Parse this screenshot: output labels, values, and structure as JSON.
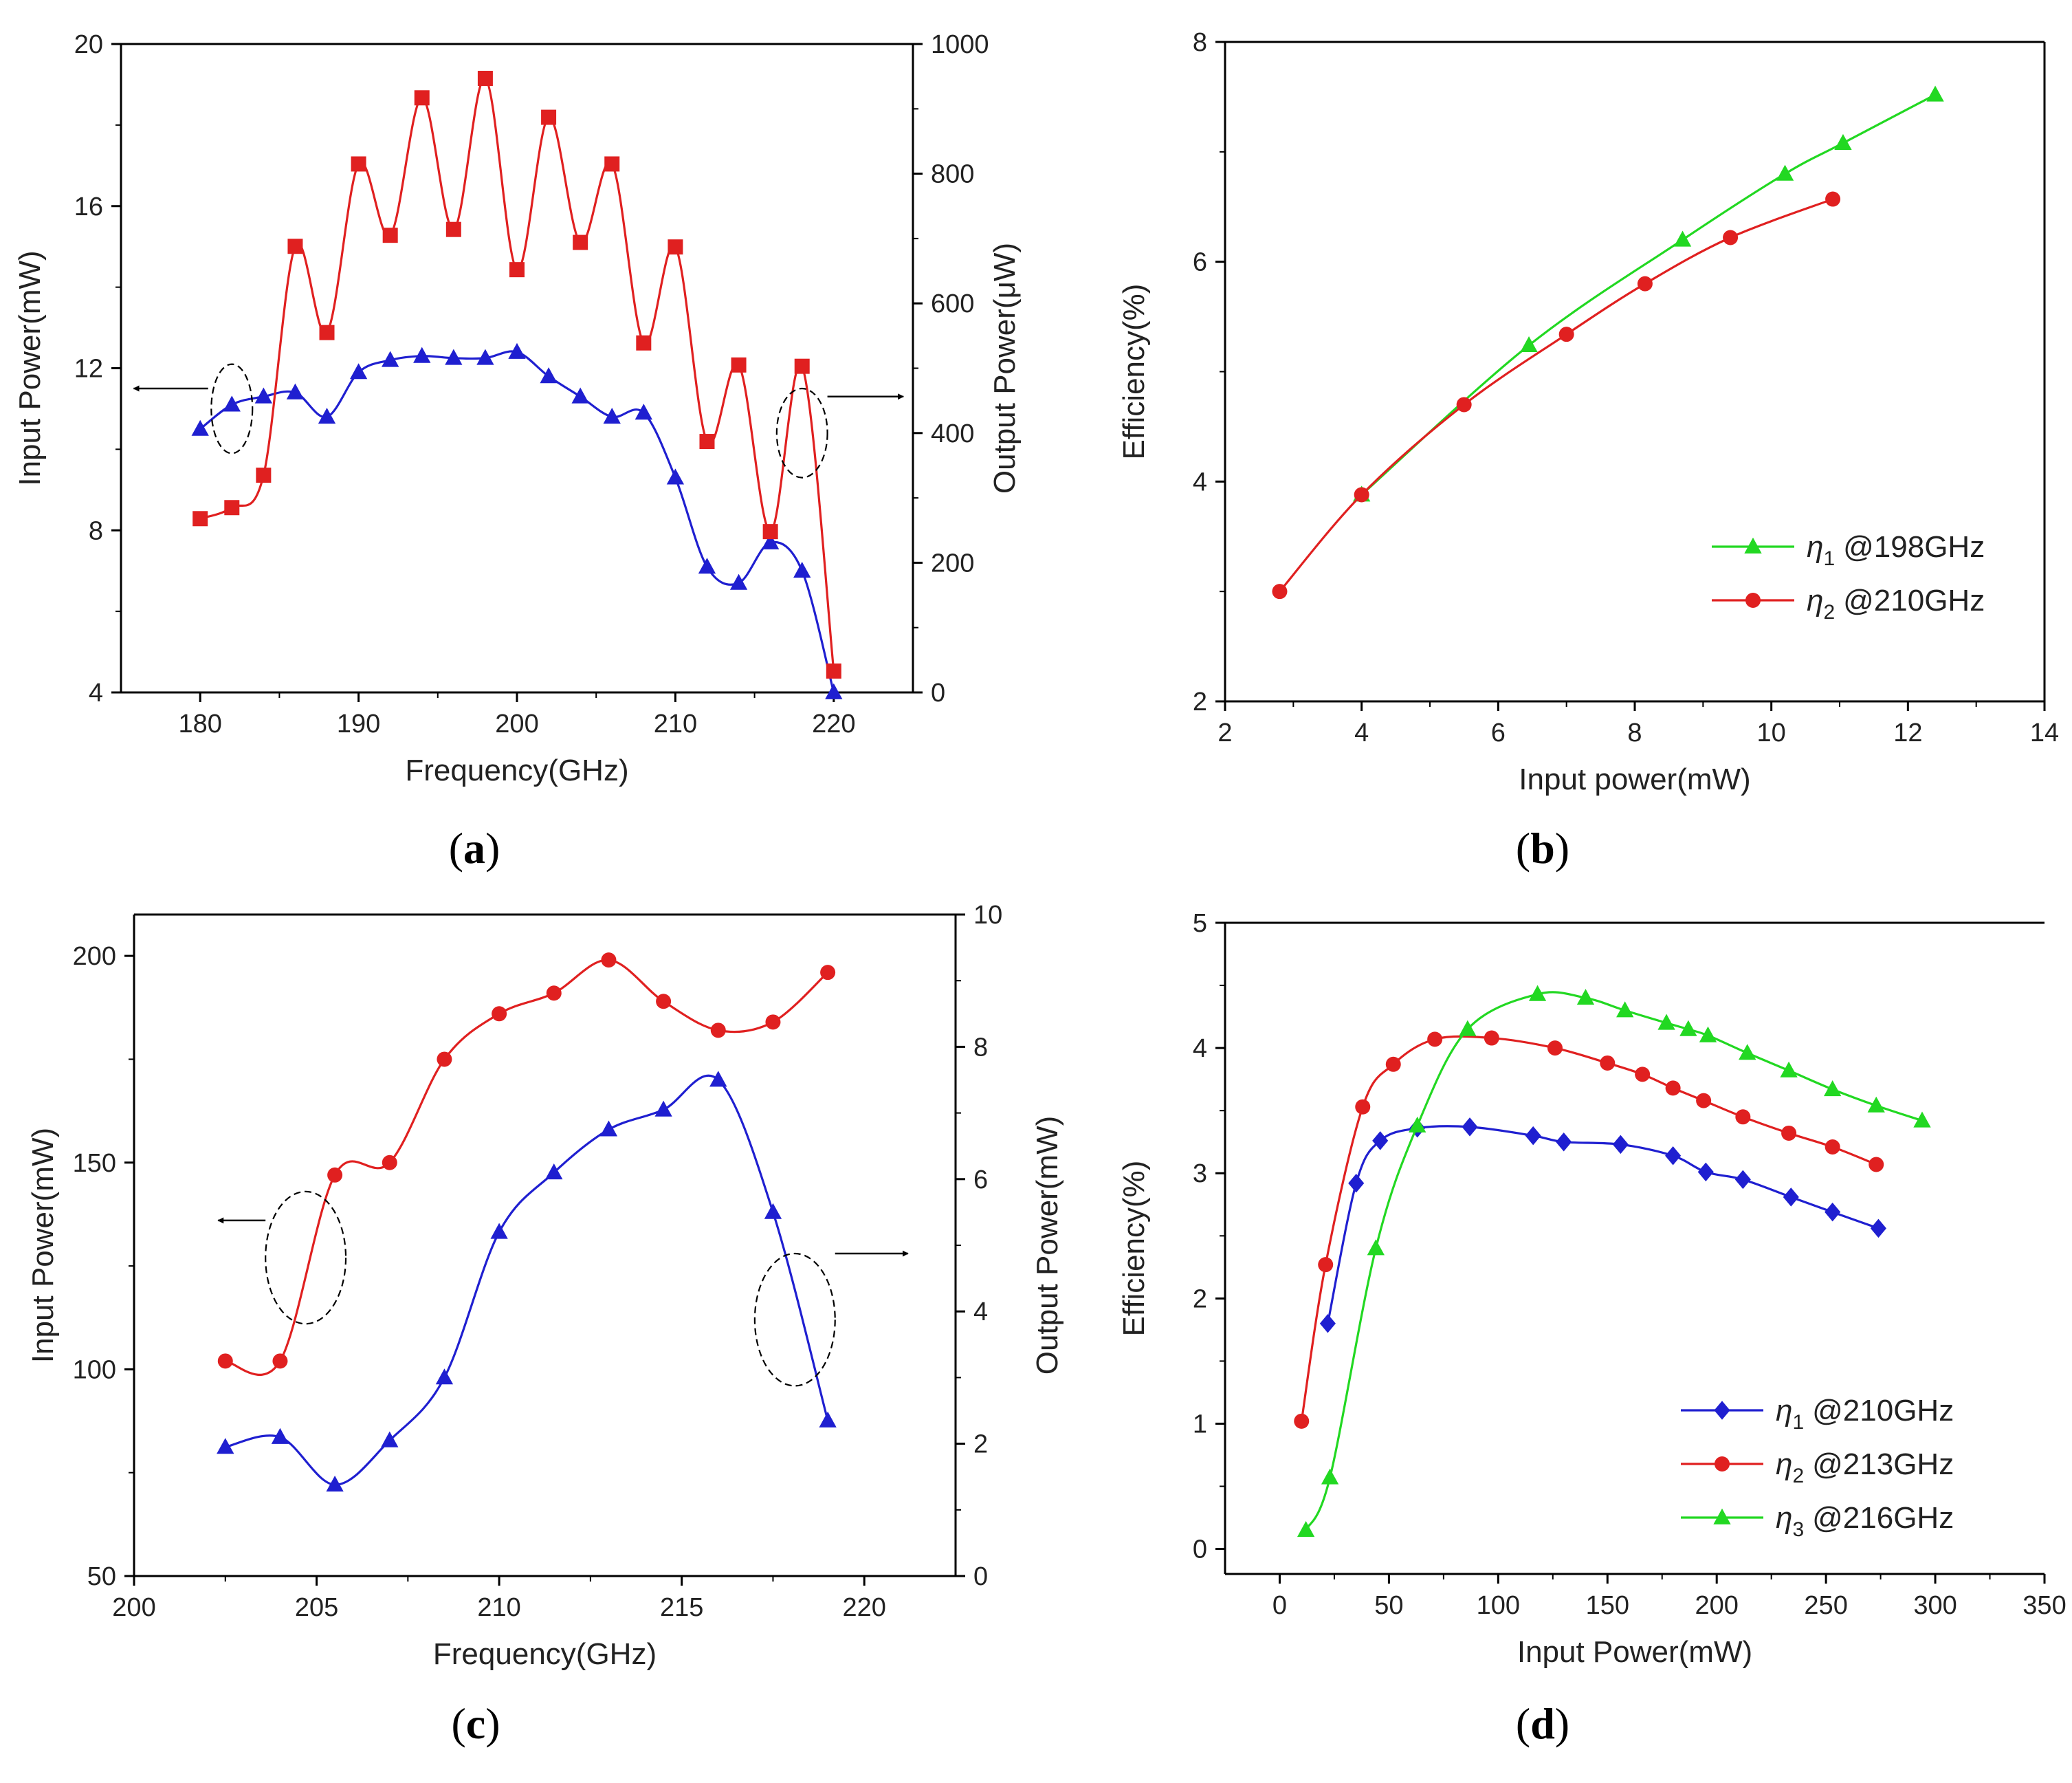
{
  "colors": {
    "red": "#e02020",
    "blue": "#1f1fd0",
    "green": "#22d822",
    "axis": "#000000"
  },
  "chart_data": [
    {
      "id": "a",
      "type": "line",
      "label": "a",
      "xlabel": "Frequency(GHz)",
      "ylabel": "Input Power(mW)",
      "ylabel_right": "Output Power(μW)",
      "xlim": [
        175,
        225
      ],
      "ylim": [
        4,
        20
      ],
      "ylim_right": [
        0,
        1000
      ],
      "xticks": [
        180,
        190,
        200,
        210,
        220
      ],
      "yticks": [
        4,
        8,
        12,
        16,
        20
      ],
      "yticks_right": [
        0,
        200,
        400,
        600,
        800,
        1000
      ],
      "box_right": true,
      "series": [
        {
          "axis": "left",
          "color": "blue",
          "marker": "triangle",
          "x": [
            180,
            182,
            184,
            186,
            188,
            190,
            192,
            194,
            196,
            198,
            200,
            202,
            204,
            206,
            208,
            210,
            212,
            214,
            216,
            218,
            220
          ],
          "y": [
            10.5,
            11.1,
            11.3,
            11.4,
            10.8,
            11.9,
            12.2,
            12.3,
            12.25,
            12.25,
            12.4,
            11.8,
            11.3,
            10.8,
            10.9,
            9.3,
            7.1,
            6.7,
            7.7,
            7.0,
            4.0
          ]
        },
        {
          "axis": "right",
          "color": "red",
          "marker": "square",
          "x": [
            180,
            182,
            184,
            186,
            188,
            190,
            192,
            194,
            196,
            198,
            200,
            202,
            204,
            206,
            208,
            210,
            212,
            214,
            216,
            218,
            220
          ],
          "y": [
            268,
            285,
            335,
            688,
            555,
            815,
            705,
            917,
            714,
            947,
            652,
            887,
            694,
            815,
            539,
            687,
            387,
            505,
            248,
            503,
            33
          ]
        }
      ],
      "annotations": [
        {
          "type": "ellipse",
          "cx": 182,
          "cy": 11.0,
          "rx": 1.3,
          "ry": 1.1
        },
        {
          "type": "arrow",
          "x1": 180.5,
          "y1": 11.5,
          "x2": 175.8,
          "y2": 11.5
        },
        {
          "type": "ellipse",
          "cx": 218,
          "cy": 10.4,
          "rx": 1.6,
          "ry": 1.1
        },
        {
          "type": "arrow",
          "x1": 219.6,
          "y1": 11.3,
          "x2": 224.4,
          "y2": 11.3
        }
      ]
    },
    {
      "id": "b",
      "type": "line",
      "label": "b",
      "xlabel": "Input power(mW)",
      "ylabel": "Efficiency(%)",
      "xlim": [
        2,
        14
      ],
      "ylim": [
        2,
        8
      ],
      "xticks": [
        2,
        4,
        6,
        8,
        10,
        12,
        14
      ],
      "yticks": [
        2,
        4,
        6,
        8
      ],
      "box_right": true,
      "legend": {
        "placement": "bottom-right",
        "sym": [
          "η",
          "η"
        ],
        "sub": [
          "1",
          "2"
        ],
        "freq": [
          "@198GHz",
          "@210GHz"
        ]
      },
      "series": [
        {
          "color": "green",
          "marker": "triangle",
          "x": [
            4.0,
            6.45,
            8.7,
            10.2,
            11.05,
            12.4
          ],
          "y": [
            3.88,
            5.24,
            6.2,
            6.8,
            7.08,
            7.52
          ]
        },
        {
          "color": "red",
          "marker": "circle",
          "x": [
            2.8,
            4.0,
            5.5,
            7.0,
            8.15,
            9.4,
            10.9
          ],
          "y": [
            3.0,
            3.88,
            4.7,
            5.34,
            5.8,
            6.22,
            6.57
          ]
        }
      ]
    },
    {
      "id": "c",
      "type": "line",
      "label": "c",
      "xlabel": "Frequency(GHz)",
      "ylabel": "Input Power(mW)",
      "ylabel_right": "Output Power(mW)",
      "xlim": [
        200,
        222.5
      ],
      "ylim": [
        50,
        210
      ],
      "ylim_right": [
        0,
        10
      ],
      "xticks": [
        200,
        205,
        210,
        215,
        220
      ],
      "yticks": [
        50,
        100,
        150,
        200
      ],
      "yticks_right": [
        0,
        2,
        4,
        6,
        8,
        10
      ],
      "box_right": true,
      "series": [
        {
          "axis": "left",
          "color": "red",
          "marker": "circle",
          "x": [
            202.5,
            204,
            205.5,
            207,
            208.5,
            210,
            211.5,
            213,
            214.5,
            216,
            217.5,
            219
          ],
          "y": [
            102,
            102,
            147,
            150,
            175,
            186,
            191,
            199,
            189,
            182,
            184,
            196
          ]
        },
        {
          "axis": "right",
          "color": "blue",
          "marker": "triangle",
          "x": [
            202.5,
            204,
            205.5,
            207,
            208.5,
            210,
            211.5,
            213,
            214.5,
            216,
            217.5,
            219
          ],
          "y": [
            1.95,
            2.1,
            1.38,
            2.05,
            3.0,
            5.2,
            6.1,
            6.75,
            7.05,
            7.5,
            5.5,
            2.35
          ]
        }
      ],
      "annotations": [
        {
          "type": "ellipse",
          "cx": 204.7,
          "cy": 127,
          "rx": 1.1,
          "ry": 16
        },
        {
          "type": "arrow",
          "x1": 203.6,
          "y1": 136,
          "x2": 202.3,
          "y2": 136
        },
        {
          "type": "ellipse",
          "cx": 218.1,
          "cy": 112,
          "rx": 1.1,
          "ry": 16
        },
        {
          "type": "arrow",
          "x1": 219.2,
          "y1": 128,
          "x2": 221.2,
          "y2": 128
        }
      ]
    },
    {
      "id": "d",
      "type": "line",
      "label": "d",
      "xlabel": "Input Power(mW)",
      "ylabel": "Efficiency(%)",
      "xlim": [
        -25,
        350
      ],
      "ylim": [
        -0.2,
        5
      ],
      "xticks": [
        0,
        50,
        100,
        150,
        200,
        250,
        300,
        350
      ],
      "yticks": [
        0,
        1,
        2,
        3,
        4,
        5
      ],
      "box_right": false,
      "legend": {
        "placement": "bottom-right",
        "sym": [
          "η",
          "η",
          "η"
        ],
        "sub": [
          "1",
          "2",
          "3"
        ],
        "freq": [
          "@210GHz",
          "@213GHz",
          "@216GHz"
        ]
      },
      "series": [
        {
          "color": "blue",
          "marker": "diamond",
          "x": [
            22,
            35,
            46,
            63,
            87,
            116,
            130,
            156,
            180,
            195,
            212,
            234,
            253,
            274
          ],
          "y": [
            1.8,
            2.92,
            3.26,
            3.36,
            3.37,
            3.3,
            3.25,
            3.23,
            3.14,
            3.01,
            2.95,
            2.81,
            2.69,
            2.56
          ]
        },
        {
          "color": "red",
          "marker": "circle",
          "x": [
            10,
            21,
            38,
            52,
            71,
            97,
            126,
            150,
            166,
            180,
            194,
            212,
            233,
            253,
            273
          ],
          "y": [
            1.02,
            2.27,
            3.53,
            3.87,
            4.07,
            4.08,
            4.0,
            3.88,
            3.79,
            3.68,
            3.58,
            3.45,
            3.32,
            3.21,
            3.07
          ]
        },
        {
          "color": "green",
          "marker": "triangle",
          "x": [
            12,
            23,
            44,
            63,
            86,
            118,
            140,
            158,
            177,
            187,
            196,
            214,
            233,
            253,
            273,
            294
          ],
          "y": [
            0.15,
            0.57,
            2.4,
            3.38,
            4.15,
            4.43,
            4.4,
            4.3,
            4.2,
            4.15,
            4.1,
            3.96,
            3.82,
            3.67,
            3.54,
            3.42
          ]
        }
      ]
    }
  ]
}
